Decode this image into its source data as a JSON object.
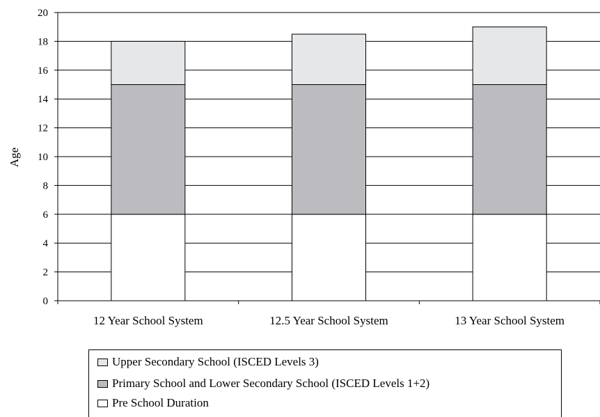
{
  "chart_data": {
    "type": "bar",
    "stacked": true,
    "categories": [
      "12 Year School System",
      "12.5 Year School System",
      "13 Year School System"
    ],
    "series": [
      {
        "name": "Pre School Duration",
        "values": [
          6,
          6,
          6
        ],
        "color": "#ffffff"
      },
      {
        "name": "Primary School and Lower Secondary School (ISCED Levels 1+2)",
        "values": [
          9,
          9,
          9
        ],
        "color": "#bcbcc0"
      },
      {
        "name": "Upper Secondary School (ISCED Levels 3)",
        "values": [
          3,
          3.5,
          4
        ],
        "color": "#e6e7e9"
      }
    ],
    "ylabel": "Age",
    "xlabel": "",
    "ylim": [
      0,
      20
    ],
    "yticks": [
      0,
      2,
      4,
      6,
      8,
      10,
      12,
      14,
      16,
      18,
      20
    ],
    "grid": true,
    "legend_position": "bottom"
  },
  "legend": {
    "items": [
      {
        "label": "Upper Secondary School (ISCED Levels 3)",
        "color": "#e6e7e9"
      },
      {
        "label": "Primary School and Lower Secondary School (ISCED Levels 1+2)",
        "color": "#bcbcc0"
      },
      {
        "label": "Pre School Duration",
        "color": "#ffffff"
      }
    ]
  }
}
